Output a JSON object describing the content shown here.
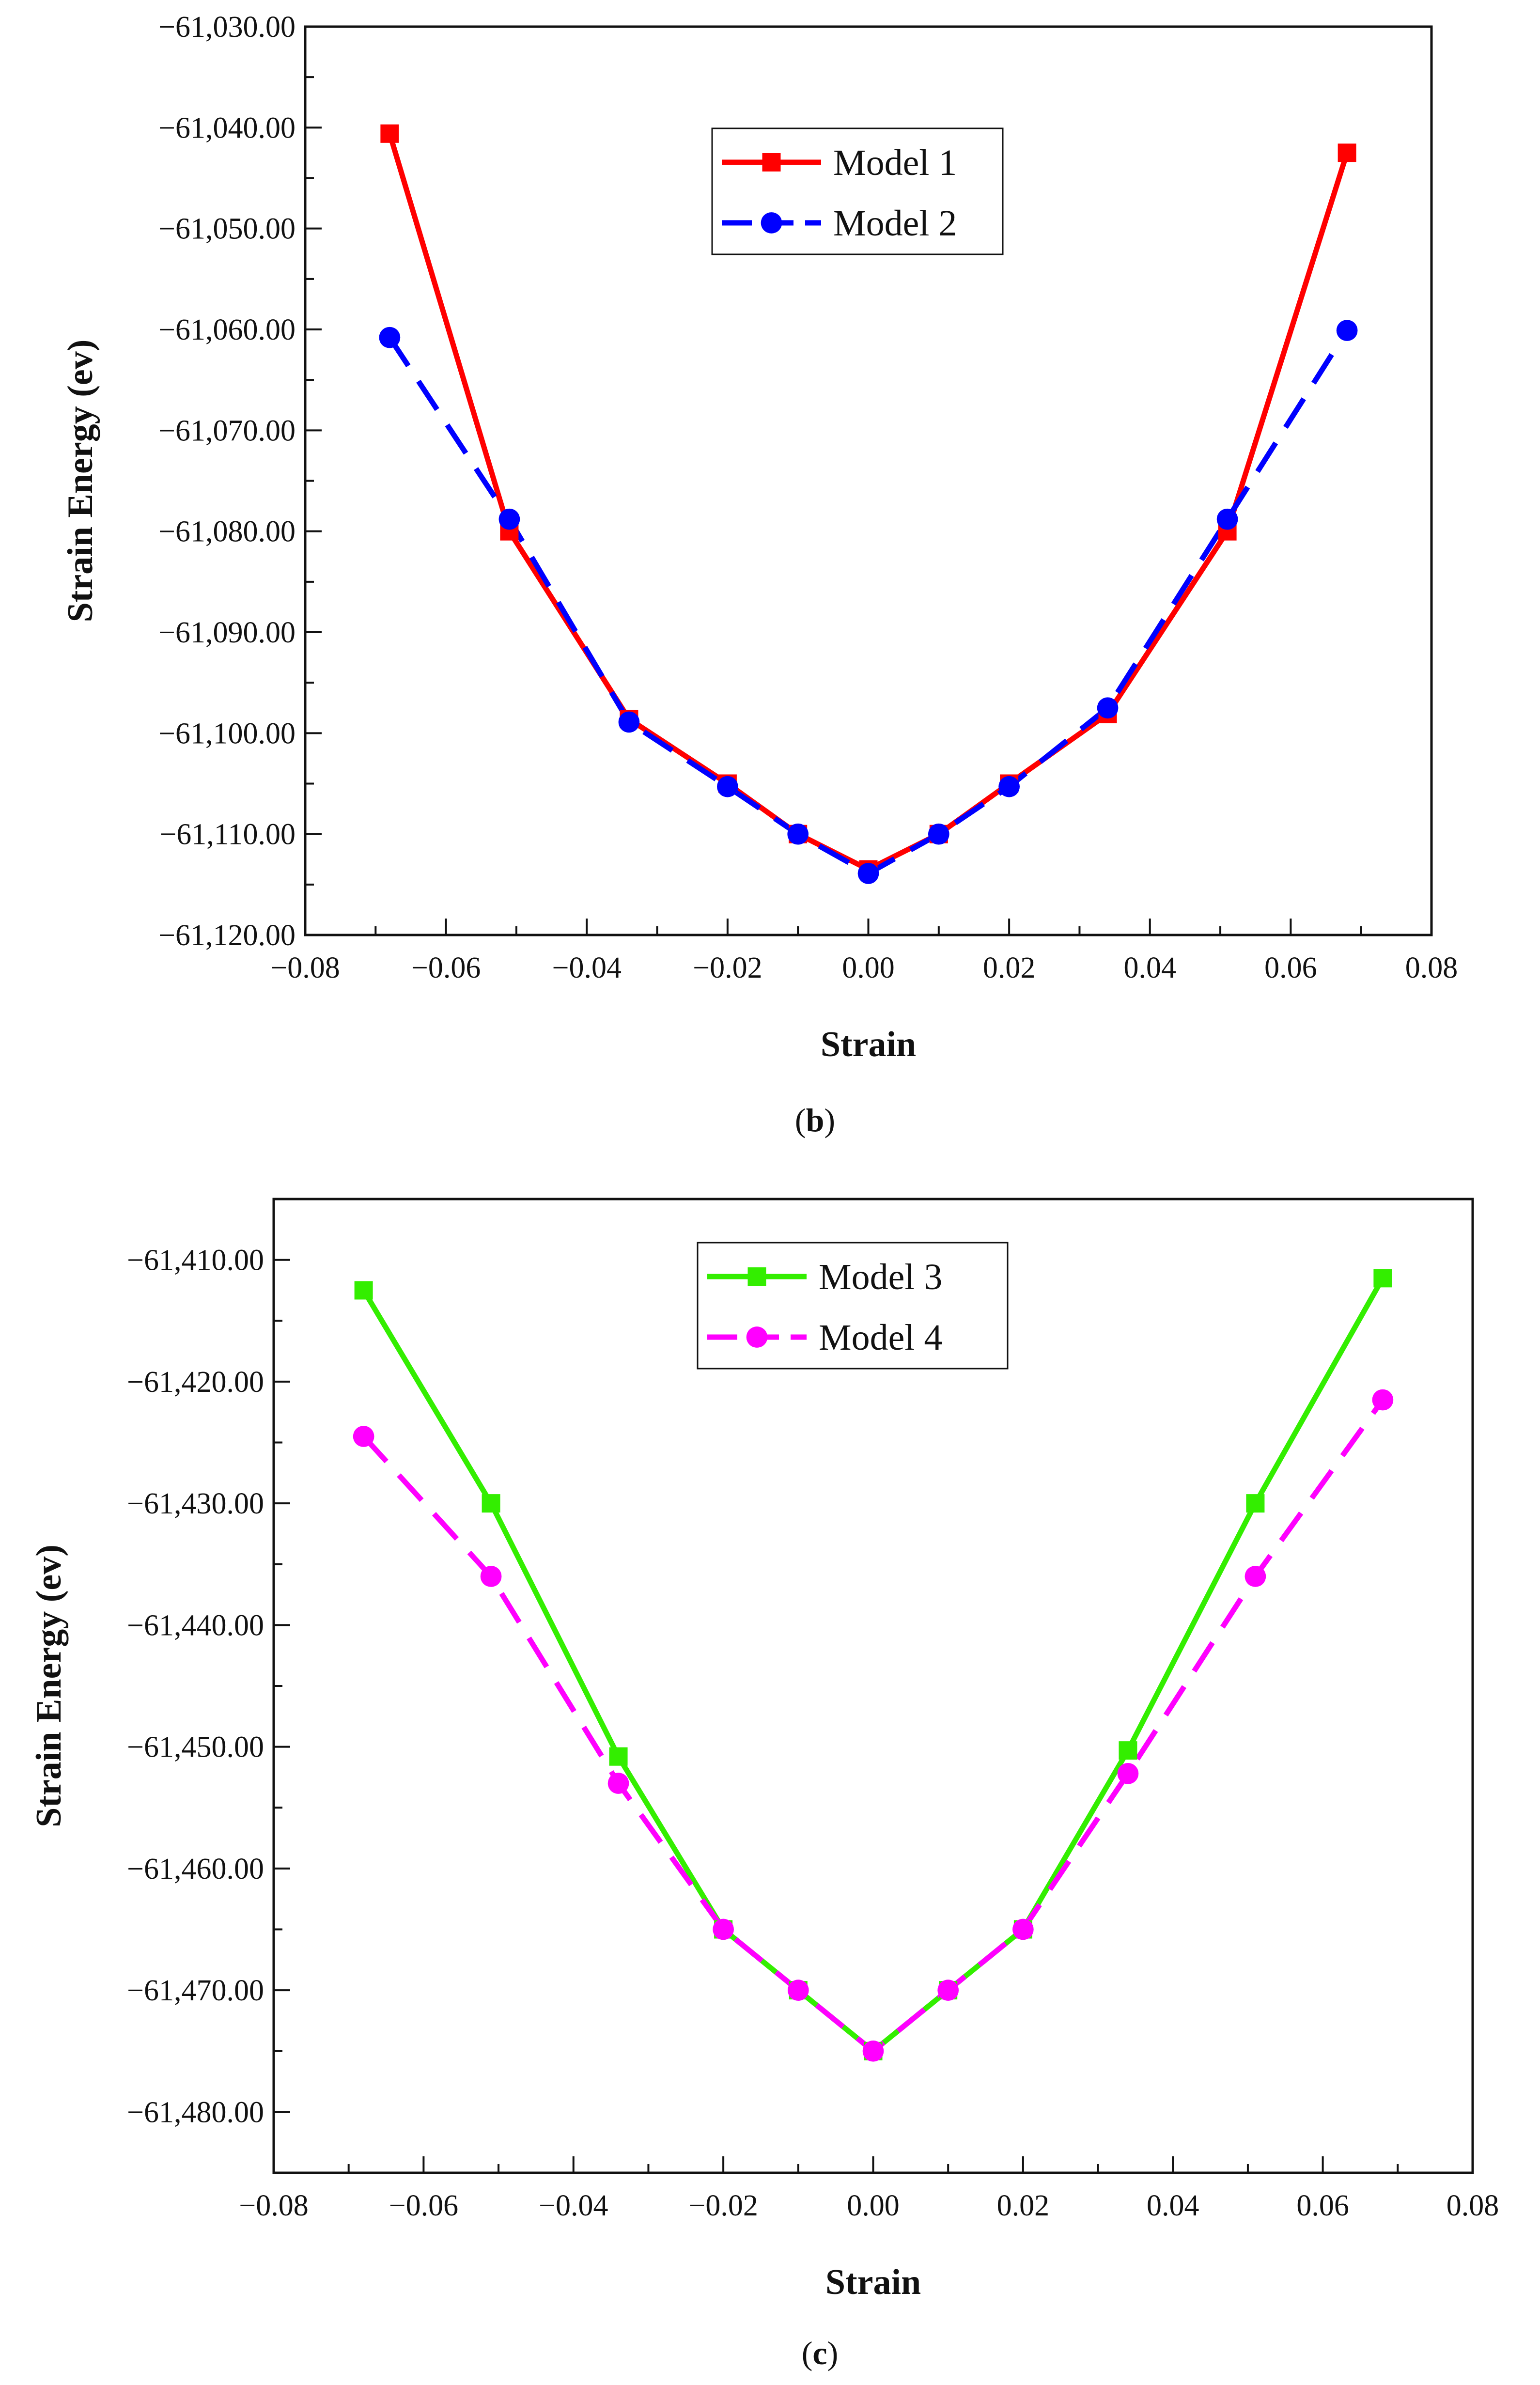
{
  "chart_data": [
    {
      "type": "line",
      "panel": "b",
      "caption_letter": "b",
      "xlabel": "Strain",
      "ylabel": "Strain Energy (ev)",
      "xlim": [
        -0.08,
        0.08
      ],
      "ylim": [
        -61120,
        -61030
      ],
      "x_ticks": [
        -0.08,
        -0.06,
        -0.04,
        -0.02,
        0.0,
        0.02,
        0.04,
        0.06,
        0.08
      ],
      "x_tick_labels": [
        "−0.08",
        "−0.06",
        "−0.04",
        "−0.02",
        "0.00",
        "0.02",
        "0.04",
        "0.06",
        "0.08"
      ],
      "y_ticks": [
        -61030,
        -61040,
        -61050,
        -61060,
        -61070,
        -61080,
        -61090,
        -61100,
        -61110,
        -61120
      ],
      "y_tick_labels": [
        "−61,030.00",
        "−61,040.00",
        "−61,050.00",
        "−61,060.00",
        "−61,070.00",
        "−61,080.00",
        "−61,090.00",
        "−61,100.00",
        "−61,110.00",
        "−61,120.00"
      ],
      "legend_position": "top-center",
      "series": [
        {
          "name": "Model 1",
          "color": "#ff0000",
          "marker": "square",
          "dashed": false,
          "x": [
            -0.068,
            -0.051,
            -0.034,
            -0.02,
            -0.01,
            0.0,
            0.01,
            0.02,
            0.034,
            0.051,
            0.068
          ],
          "values": [
            -61040.6,
            -61080.0,
            -61098.6,
            -61105.0,
            -61110.0,
            -61113.5,
            -61110.0,
            -61105.0,
            -61098.1,
            -61080.0,
            -61042.5
          ]
        },
        {
          "name": "Model 2",
          "color": "#0000ff",
          "marker": "circle",
          "dashed": true,
          "x": [
            -0.068,
            -0.051,
            -0.034,
            -0.02,
            -0.01,
            0.0,
            0.01,
            0.02,
            0.034,
            0.051,
            0.068
          ],
          "values": [
            -61060.8,
            -61078.8,
            -61098.9,
            -61105.3,
            -61110.0,
            -61113.9,
            -61110.0,
            -61105.3,
            -61097.5,
            -61078.8,
            -61060.1
          ]
        }
      ]
    },
    {
      "type": "line",
      "panel": "c",
      "caption_letter": "c",
      "xlabel": "Strain",
      "ylabel": "Strain Energy (ev)",
      "xlim": [
        -0.08,
        0.08
      ],
      "ylim": [
        -61485,
        -61405
      ],
      "x_ticks": [
        -0.08,
        -0.06,
        -0.04,
        -0.02,
        0.0,
        0.02,
        0.04,
        0.06,
        0.08
      ],
      "x_tick_labels": [
        "−0.08",
        "−0.06",
        "−0.04",
        "−0.02",
        "0.00",
        "0.02",
        "0.04",
        "0.06",
        "0.08"
      ],
      "y_ticks": [
        -61410,
        -61420,
        -61430,
        -61440,
        -61450,
        -61460,
        -61470,
        -61480
      ],
      "y_tick_labels": [
        "−61,410.00",
        "−61,420.00",
        "−61,430.00",
        "−61,440.00",
        "−61,450.00",
        "−61,460.00",
        "−61,470.00",
        "−61,480.00"
      ],
      "legend_position": "top-center",
      "series": [
        {
          "name": "Model 3",
          "color": "#33ee00",
          "marker": "square",
          "dashed": false,
          "x": [
            -0.068,
            -0.051,
            -0.034,
            -0.02,
            -0.01,
            0.0,
            0.01,
            0.02,
            0.034,
            0.051,
            0.068
          ],
          "values": [
            -61412.5,
            -61430.0,
            -61450.8,
            -61465.0,
            -61470.0,
            -61475.0,
            -61470.0,
            -61465.0,
            -61450.3,
            -61430.0,
            -61411.5
          ]
        },
        {
          "name": "Model 4",
          "color": "#ff00ff",
          "marker": "circle",
          "dashed": true,
          "x": [
            -0.068,
            -0.051,
            -0.034,
            -0.02,
            -0.01,
            0.0,
            0.01,
            0.02,
            0.034,
            0.051,
            0.068
          ],
          "values": [
            -61424.5,
            -61436.0,
            -61453.0,
            -61465.0,
            -61470.0,
            -61475.0,
            -61470.0,
            -61465.0,
            -61452.2,
            -61436.0,
            -61421.5
          ]
        }
      ]
    }
  ]
}
